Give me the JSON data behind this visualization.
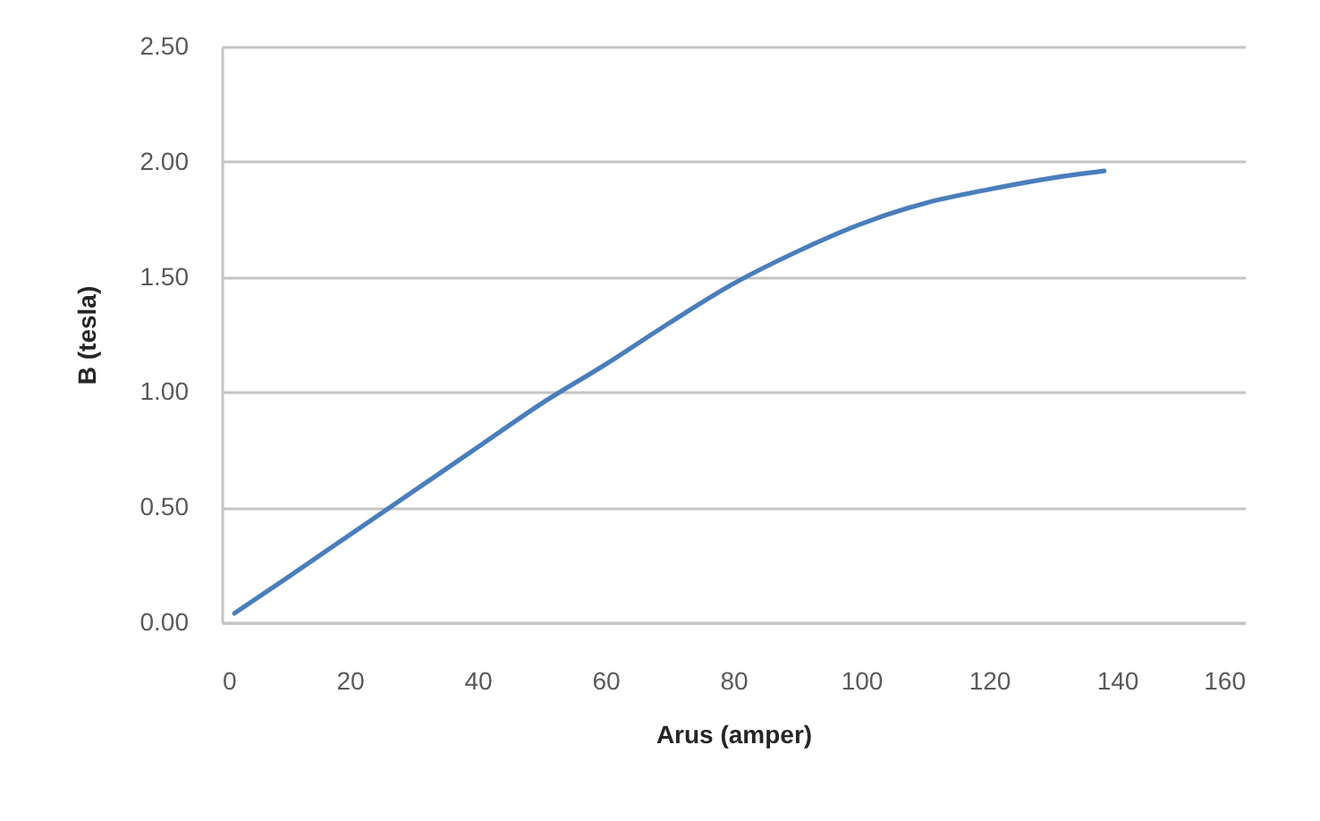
{
  "chart_data": {
    "type": "line",
    "xlabel": "Arus (amper)",
    "ylabel": "B (tesla)",
    "x": [
      2,
      10,
      20,
      30,
      40,
      50,
      60,
      70,
      80,
      90,
      100,
      110,
      120,
      130,
      138
    ],
    "series": [
      {
        "color": "#4a7ebb",
        "values": [
          0.04,
          0.19,
          0.38,
          0.57,
          0.76,
          0.95,
          1.12,
          1.3,
          1.47,
          1.61,
          1.73,
          1.82,
          1.88,
          1.93,
          1.96
        ]
      }
    ],
    "xlim": [
      0,
      160
    ],
    "xticks": [
      0,
      20,
      40,
      60,
      80,
      100,
      120,
      140,
      160
    ],
    "ylim": [
      0,
      2.5
    ],
    "yticks": [
      {
        "value": 0,
        "label": "0.00"
      },
      {
        "value": 0.5,
        "label": "0.50"
      },
      {
        "value": 1,
        "label": "1.00"
      },
      {
        "value": 1.5,
        "label": "1.50"
      },
      {
        "value": 2,
        "label": "2.00"
      },
      {
        "value": 2.5,
        "label": "2.50"
      }
    ],
    "grid": "y",
    "line_style": "solid"
  }
}
